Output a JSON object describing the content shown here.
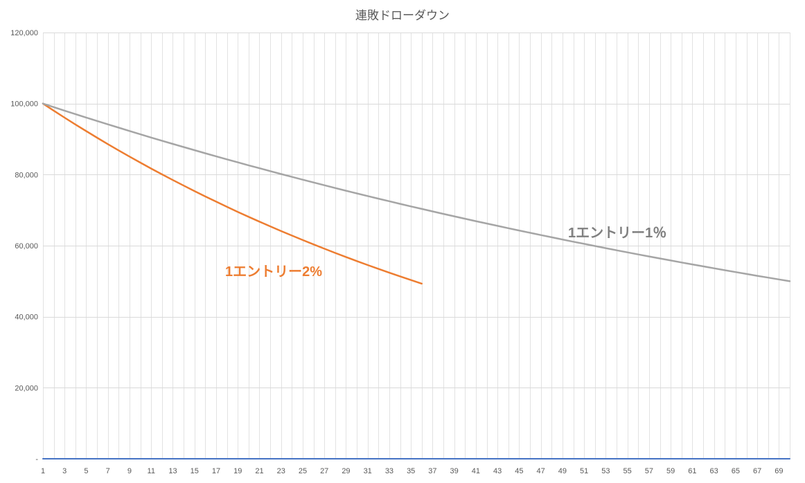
{
  "chart_data": {
    "type": "line",
    "title": "連敗ドローダウン",
    "xlabel": "",
    "ylabel": "",
    "ylim": [
      0,
      120000
    ],
    "y_tick_step": 20000,
    "y_tick_labels": [
      "-",
      "20,000",
      "40,000",
      "60,000",
      "80,000",
      "100,000",
      "120,000"
    ],
    "x": [
      1,
      2,
      3,
      4,
      5,
      6,
      7,
      8,
      9,
      10,
      11,
      12,
      13,
      14,
      15,
      16,
      17,
      18,
      19,
      20,
      21,
      22,
      23,
      24,
      25,
      26,
      27,
      28,
      29,
      30,
      31,
      32,
      33,
      34,
      35,
      36,
      37,
      38,
      39,
      40,
      41,
      42,
      43,
      44,
      45,
      46,
      47,
      48,
      49,
      50,
      51,
      52,
      53,
      54,
      55,
      56,
      57,
      58,
      59,
      60,
      61,
      62,
      63,
      64,
      65,
      66,
      67,
      68,
      69,
      70
    ],
    "x_tick_labels": [
      "1",
      "3",
      "5",
      "7",
      "9",
      "11",
      "13",
      "15",
      "17",
      "19",
      "21",
      "23",
      "25",
      "27",
      "29",
      "31",
      "33",
      "35",
      "37",
      "39",
      "41",
      "43",
      "45",
      "47",
      "49",
      "51",
      "53",
      "55",
      "57",
      "59",
      "61",
      "63",
      "65",
      "67",
      "69"
    ],
    "grid": true,
    "legend": "none",
    "styles": {
      "background": "#FFFFFF",
      "gridline_color_h": "#D9D9D9",
      "gridline_color_v": "#E2E2E2",
      "axis_line_color": "#BFBFBF",
      "axis_text_color": "#595959",
      "title_color": "#595959"
    },
    "series": [
      {
        "key": "flat-zero",
        "name": "",
        "color": "#4472C4",
        "width": 2,
        "values": [
          0,
          0,
          0,
          0,
          0,
          0,
          0,
          0,
          0,
          0,
          0,
          0,
          0,
          0,
          0,
          0,
          0,
          0,
          0,
          0,
          0,
          0,
          0,
          0,
          0,
          0,
          0,
          0,
          0,
          0,
          0,
          0,
          0,
          0,
          0,
          0,
          0,
          0,
          0,
          0,
          0,
          0,
          0,
          0,
          0,
          0,
          0,
          0,
          0,
          0,
          0,
          0,
          0,
          0,
          0,
          0,
          0,
          0,
          0,
          0,
          0,
          0,
          0,
          0,
          0,
          0,
          0,
          0,
          0,
          0
        ]
      },
      {
        "key": "entry-2pct",
        "name": "1エントリー2%",
        "color": "#ED7D31",
        "width": 2.5,
        "values": [
          100000,
          98000,
          96040,
          94119,
          92237,
          90392,
          88584,
          86813,
          85076,
          83375,
          81707,
          80073,
          78472,
          76902,
          75364,
          73857,
          72380,
          70932,
          69514,
          68123,
          66761,
          65426,
          64117,
          62835,
          61578,
          60346,
          59140,
          57957,
          56798,
          55662,
          54548,
          53457,
          52388,
          51341,
          50314,
          49307
        ]
      },
      {
        "key": "entry-1pct",
        "name": "1エントリー1％",
        "color": "#A5A5A5",
        "width": 2.5,
        "values": [
          100000,
          99000,
          98010,
          97030,
          96060,
          95099,
          94148,
          93207,
          92274,
          91352,
          90438,
          89534,
          88638,
          87752,
          86875,
          86006,
          85146,
          84294,
          83451,
          82617,
          81791,
          80973,
          80163,
          79361,
          78568,
          77782,
          77004,
          76234,
          75472,
          74717,
          73970,
          73230,
          72498,
          71773,
          71055,
          70345,
          69641,
          68945,
          68255,
          67573,
          66897,
          66228,
          65566,
          64910,
          64261,
          63619,
          62982,
          62352,
          61729,
          61112,
          60501,
          59896,
          59297,
          58704,
          58117,
          57535,
          56960,
          56390,
          55827,
          55268,
          54716,
          54169,
          53627,
          53090,
          52560,
          52034,
          51514,
          50999,
          50489,
          49984
        ]
      }
    ],
    "annotations": [
      {
        "text": "1エントリー2%",
        "color": "#ED7D31"
      },
      {
        "text": "1エントリー1％",
        "color": "#7F7F7F"
      }
    ]
  }
}
